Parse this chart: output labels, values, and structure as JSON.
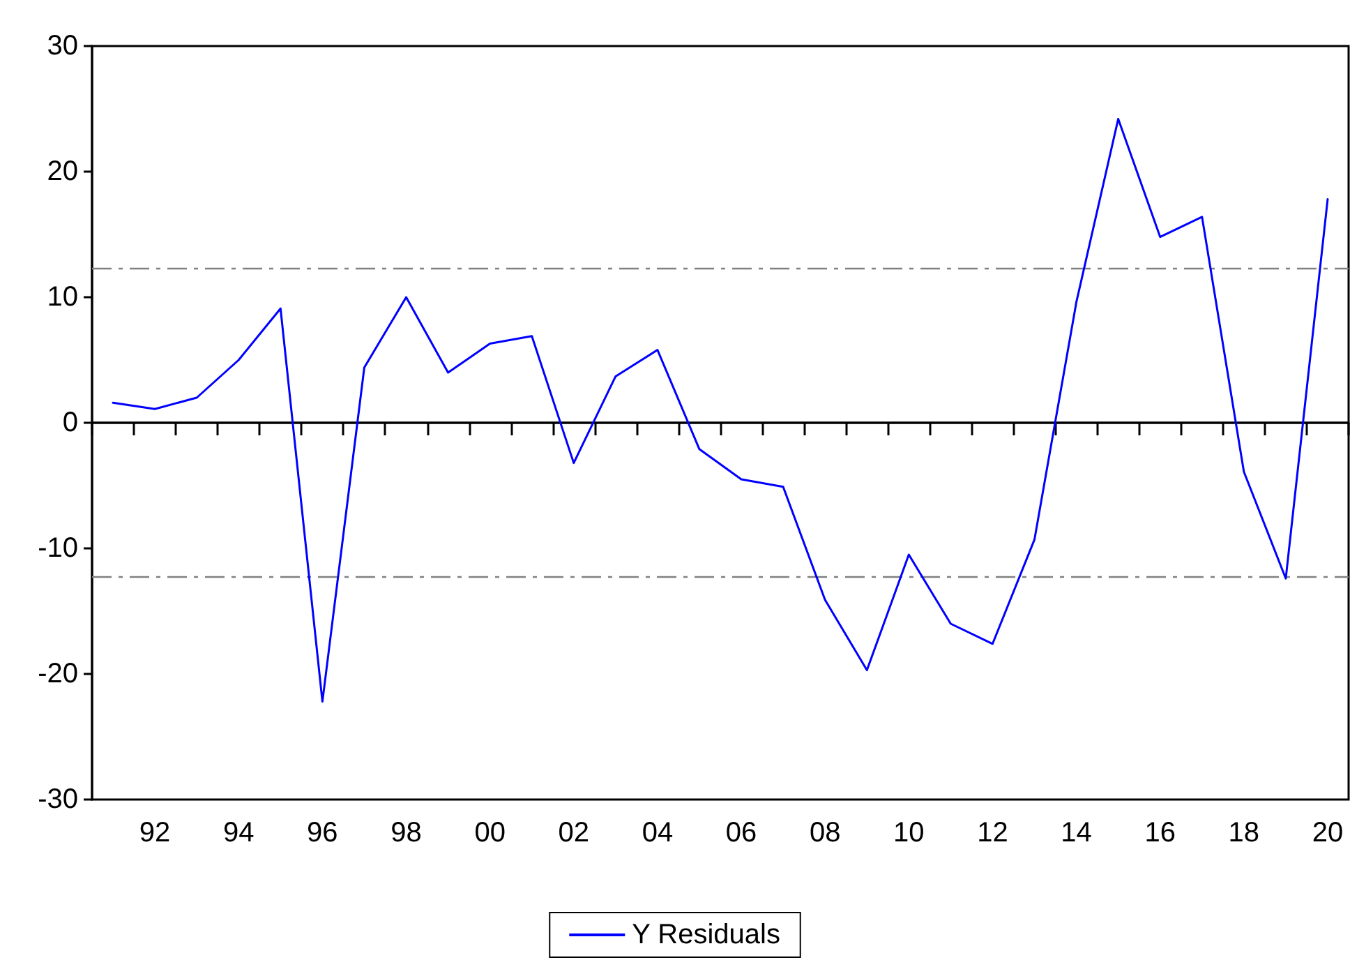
{
  "chart_data": {
    "type": "line",
    "categories": [
      null,
      "92",
      null,
      "94",
      null,
      "96",
      null,
      "98",
      null,
      "00",
      null,
      "02",
      null,
      "04",
      null,
      "06",
      null,
      "08",
      null,
      "10",
      null,
      "12",
      null,
      "14",
      null,
      "16",
      null,
      "18",
      null,
      "20"
    ],
    "series": [
      {
        "name": "Y Residuals",
        "color": "#0000ff",
        "values": [
          1.6,
          1.1,
          2.0,
          5.0,
          9.1,
          -22.2,
          4.4,
          10.0,
          4.0,
          6.3,
          6.9,
          -3.2,
          3.7,
          5.8,
          -2.1,
          -4.5,
          -5.1,
          -14.1,
          -19.7,
          -10.5,
          -16.0,
          -17.6,
          -9.3,
          9.6,
          24.2,
          14.8,
          16.4,
          -3.9,
          -12.4,
          17.8
        ]
      }
    ],
    "ylim": [
      -30,
      30
    ],
    "yticks": [
      -30,
      -20,
      -10,
      0,
      10,
      20,
      30
    ],
    "ref_lines": [
      {
        "axis": "y",
        "value": 12.3,
        "color": "#808080",
        "line_style": "dashed"
      },
      {
        "axis": "y",
        "value": 0,
        "color": "#000000",
        "line_style": "solid"
      },
      {
        "axis": "y",
        "value": -12.3,
        "color": "#808080",
        "line_style": "dashed"
      }
    ],
    "grid": false,
    "legend": "bottom",
    "marker": "none",
    "line_style": "solid"
  }
}
